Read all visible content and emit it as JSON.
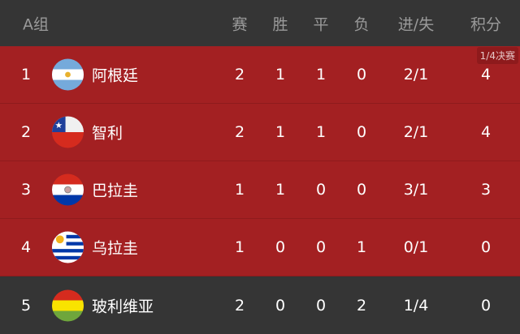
{
  "header": {
    "group": "A组",
    "cols": [
      "赛",
      "胜",
      "平",
      "负",
      "进/失",
      "积分"
    ]
  },
  "colors": {
    "qualified": "#a32022",
    "eliminated": "#353535"
  },
  "rows": [
    {
      "rank": "1",
      "team": "阿根廷",
      "flag": "argentina-flag",
      "played": "2",
      "won": "1",
      "drawn": "1",
      "lost": "0",
      "goals": "2/1",
      "points": "4",
      "badge": "1/4决赛",
      "qualified": true
    },
    {
      "rank": "2",
      "team": "智利",
      "flag": "chile-flag",
      "played": "2",
      "won": "1",
      "drawn": "1",
      "lost": "0",
      "goals": "2/1",
      "points": "4",
      "qualified": true
    },
    {
      "rank": "3",
      "team": "巴拉圭",
      "flag": "paraguay-flag",
      "played": "1",
      "won": "1",
      "drawn": "0",
      "lost": "0",
      "goals": "3/1",
      "points": "3",
      "qualified": true
    },
    {
      "rank": "4",
      "team": "乌拉圭",
      "flag": "uruguay-flag",
      "played": "1",
      "won": "0",
      "drawn": "0",
      "lost": "1",
      "goals": "0/1",
      "points": "0",
      "qualified": true
    },
    {
      "rank": "5",
      "team": "玻利维亚",
      "flag": "bolivia-flag",
      "played": "2",
      "won": "0",
      "drawn": "0",
      "lost": "2",
      "goals": "1/4",
      "points": "0",
      "qualified": false
    }
  ]
}
